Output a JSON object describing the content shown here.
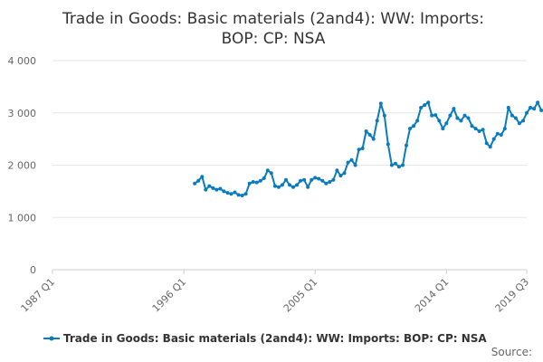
{
  "chart_data": {
    "type": "line",
    "title_lines": [
      "Trade in Goods: Basic materials (2and4): WW: Imports:",
      "BOP: CP: NSA"
    ],
    "xlabel": "",
    "ylabel": "",
    "ylim": [
      0,
      4000
    ],
    "y_ticks": [
      0,
      1000,
      2000,
      3000,
      4000
    ],
    "y_tick_labels": [
      "0",
      "1 000",
      "2 000",
      "3 000",
      "4 000"
    ],
    "x_range": [
      "1987 Q1",
      "2019 Q3"
    ],
    "x_ticks": [
      "1987 Q1",
      "1996 Q1",
      "2005 Q1",
      "2014 Q1",
      "2019 Q3"
    ],
    "grid": "horizontal",
    "legend_position": "bottom",
    "source_label": "Source:",
    "color": "#0a7bbd",
    "series": [
      {
        "name": "Trade in Goods: Basic materials (2and4): WW: Imports: BOP: CP: NSA",
        "start": "1996 Q4",
        "values": [
          1650,
          1700,
          1780,
          1530,
          1600,
          1560,
          1530,
          1550,
          1500,
          1470,
          1450,
          1480,
          1430,
          1420,
          1450,
          1650,
          1680,
          1670,
          1700,
          1750,
          1900,
          1850,
          1600,
          1580,
          1620,
          1720,
          1620,
          1580,
          1620,
          1700,
          1720,
          1580,
          1720,
          1760,
          1740,
          1700,
          1650,
          1680,
          1720,
          1900,
          1800,
          1850,
          2050,
          2100,
          2000,
          2300,
          2320,
          2650,
          2580,
          2500,
          2850,
          3180,
          2950,
          2400,
          2000,
          2030,
          1970,
          2000,
          2380,
          2700,
          2750,
          2850,
          3100,
          3150,
          3200,
          2950,
          2960,
          2850,
          2700,
          2800,
          2950,
          3080,
          2900,
          2850,
          2950,
          2900,
          2750,
          2700,
          2650,
          2680,
          2420,
          2350,
          2500,
          2600,
          2580,
          2700,
          3100,
          2950,
          2900,
          2800,
          2850,
          3000,
          3100,
          3080,
          3200,
          3050,
          3030
        ]
      }
    ]
  }
}
